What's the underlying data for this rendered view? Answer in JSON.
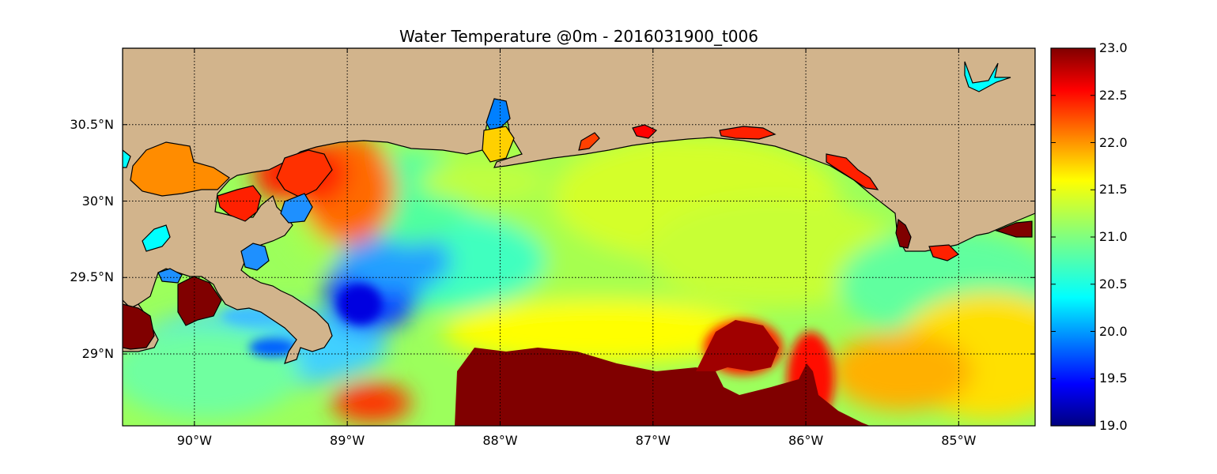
{
  "title": "Water Temperature @0m - 2016031900_t006",
  "map": {
    "lat_labels": [
      "30.5°N",
      "30°N",
      "29.5°N",
      "29°N"
    ],
    "lat_values": [
      30.5,
      30.0,
      29.5,
      29.0
    ],
    "lon_labels": [
      "90°W",
      "89°W",
      "88°W",
      "87°W",
      "86°W",
      "85°W"
    ],
    "lon_values": [
      -90,
      -89,
      -88,
      -87,
      -86,
      -85
    ],
    "extent": {
      "lon_min": -90.47,
      "lon_max": -84.5,
      "lat_min": 28.53,
      "lat_max": 31.0
    },
    "land_color": "#d2b48c",
    "gridlines": "dotted black",
    "features": [
      {
        "name": "warm shelf-edge water south of Mississippi Bight",
        "temperature": 23.0
      },
      {
        "name": "warm eddy near 86.5°W 29.1°N",
        "temperature": 23.0
      },
      {
        "name": "cool plume east of Mississippi Delta",
        "temperature": 19.5
      },
      {
        "name": "open Gulf water",
        "temperature": 21.0
      }
    ]
  },
  "colorbar": {
    "min": 19.0,
    "max": 23.0,
    "tick_labels": [
      "23.0",
      "22.5",
      "22.0",
      "21.5",
      "21.0",
      "20.5",
      "20.0",
      "19.5",
      "19.0"
    ],
    "tick_values": [
      23.0,
      22.5,
      22.0,
      21.5,
      21.0,
      20.5,
      20.0,
      19.5,
      19.0
    ],
    "colormap": "jet",
    "colors": [
      "#000080",
      "#0000ff",
      "#0080ff",
      "#00ffff",
      "#80ff80",
      "#ffff00",
      "#ff8000",
      "#ff0000",
      "#800000"
    ]
  }
}
